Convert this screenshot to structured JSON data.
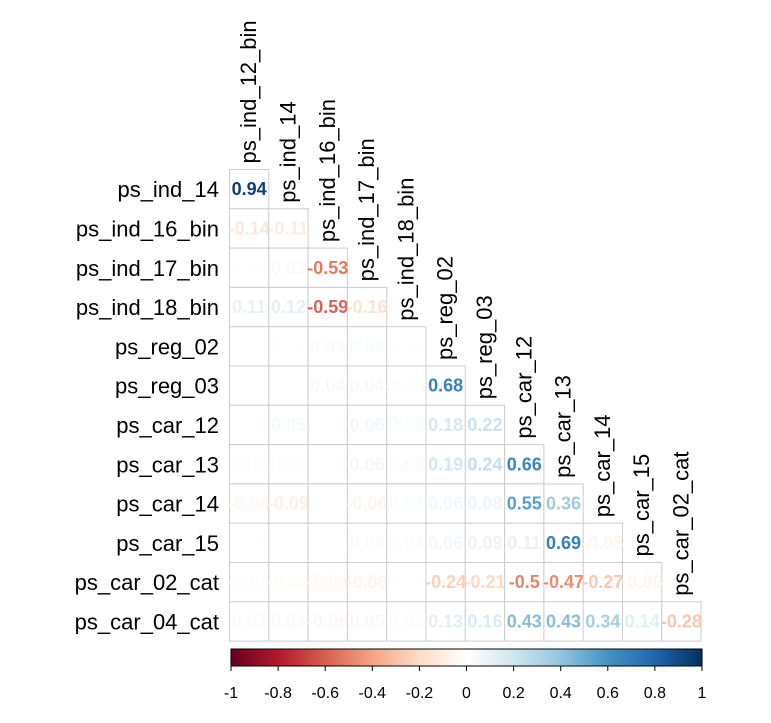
{
  "chart_data": {
    "type": "heatmap",
    "title": "",
    "variables": [
      "ps_ind_12_bin",
      "ps_ind_14",
      "ps_ind_16_bin",
      "ps_ind_17_bin",
      "ps_ind_18_bin",
      "ps_reg_02",
      "ps_reg_03",
      "ps_car_12",
      "ps_car_13",
      "ps_car_14",
      "ps_car_15",
      "ps_car_02_cat",
      "ps_car_04_cat"
    ],
    "row_labels": [
      "ps_ind_14",
      "ps_ind_16_bin",
      "ps_ind_17_bin",
      "ps_ind_18_bin",
      "ps_reg_02",
      "ps_reg_03",
      "ps_car_12",
      "ps_car_13",
      "ps_car_14",
      "ps_car_15",
      "ps_car_02_cat",
      "ps_car_04_cat"
    ],
    "col_labels": [
      "ps_ind_12_bin",
      "ps_ind_14",
      "ps_ind_16_bin",
      "ps_ind_17_bin",
      "ps_ind_18_bin",
      "ps_reg_02",
      "ps_reg_03",
      "ps_car_12",
      "ps_car_13",
      "ps_car_14",
      "ps_car_15",
      "ps_car_02_cat"
    ],
    "values": [
      [
        0.94
      ],
      [
        -0.14,
        -0.11
      ],
      [
        0.01,
        0.03,
        -0.53
      ],
      [
        0.11,
        0.12,
        -0.59,
        -0.16
      ],
      [
        0.0,
        0.01,
        0.03,
        0.03,
        0.01
      ],
      [
        0.0,
        0.0,
        0.04,
        0.04,
        -0.01,
        0.68
      ],
      [
        0.01,
        0.05,
        0.01,
        0.06,
        0.03,
        0.18,
        0.22
      ],
      [
        0.02,
        0.02,
        0.01,
        0.06,
        0.03,
        0.19,
        0.24,
        0.66
      ],
      [
        -0.04,
        -0.09,
        0.0,
        -0.06,
        0.03,
        0.06,
        0.08,
        0.55,
        0.36
      ],
      [
        0.01,
        0.01,
        0.0,
        0.03,
        0.03,
        0.06,
        0.09,
        0.11,
        0.69,
        -0.05
      ],
      [
        -0.01,
        -0.02,
        -0.04,
        -0.06,
        0.0,
        -0.24,
        -0.21,
        -0.5,
        -0.47,
        -0.27,
        -0.06
      ],
      [
        0.03,
        0.04,
        -0.05,
        0.05,
        0.02,
        0.13,
        0.16,
        0.43,
        0.43,
        0.34,
        0.14,
        -0.28
      ]
    ],
    "colorbar": {
      "range": [
        -1,
        1
      ],
      "ticks": [
        -1,
        -0.8,
        -0.6,
        -0.4,
        -0.2,
        0,
        0.2,
        0.4,
        0.6,
        0.8,
        1
      ],
      "tick_labels": [
        "-1",
        "-0.8",
        "-0.6",
        "-0.4",
        "-0.2",
        "0",
        "0.2",
        "0.4",
        "0.6",
        "0.8",
        "1"
      ]
    },
    "colors": {
      "scale": [
        "#67001f",
        "#b2182b",
        "#d6604d",
        "#f4a582",
        "#fddbc7",
        "#ffffff",
        "#d1e5f0",
        "#92c5de",
        "#4393c3",
        "#2166ac",
        "#053061"
      ],
      "grid": "#cccccc"
    }
  }
}
